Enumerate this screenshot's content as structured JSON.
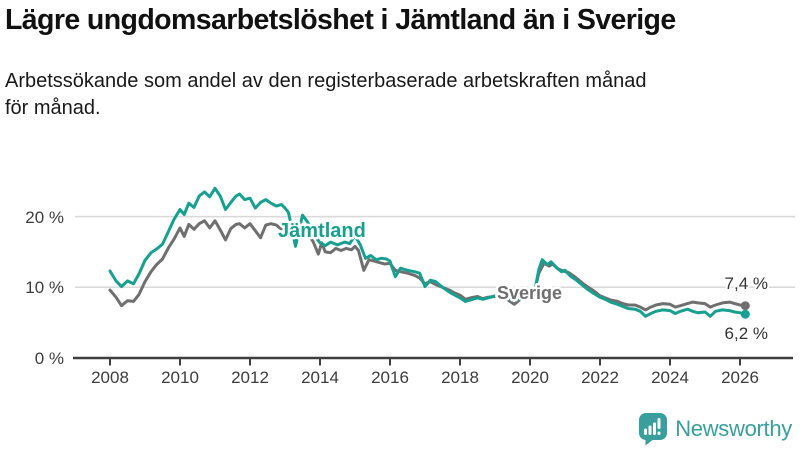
{
  "title": "Lägre ungdomsarbetslöshet i Jämtland än i Sverige",
  "subtitle_line1": "Arbetssökande som andel av den registerbaserade arbetskraften månad",
  "subtitle_line2": "för månad.",
  "branding": {
    "logo_text": "Newsworthy",
    "logo_icon": "bar-chart-speech-bubble-icon",
    "logo_color": "#3a9f9c"
  },
  "chart_data": {
    "type": "line",
    "x_range": [
      2007.5,
      2026.6
    ],
    "ylim": [
      0,
      27
    ],
    "grid": "horizontal",
    "x_tick_years": [
      "2008",
      "2010",
      "2012",
      "2014",
      "2016",
      "2018",
      "2020",
      "2022",
      "2024",
      "2026"
    ],
    "y_ticks": [
      {
        "value": 0,
        "label": "0 %"
      },
      {
        "value": 10,
        "label": "10 %"
      },
      {
        "value": 20,
        "label": "20 %"
      }
    ],
    "colors": {
      "jamtland": "#17a08f",
      "sverige": "#6f6f6f",
      "grid": "#d9d9d9",
      "axis": "#3f3f3f"
    },
    "series": [
      {
        "name": "Jämtland",
        "color": "#17a08f",
        "end_label": "6,2 %",
        "end_value": 6.2,
        "points": [
          [
            2008.0,
            12.3
          ],
          [
            2008.17,
            10.9
          ],
          [
            2008.33,
            10.1
          ],
          [
            2008.5,
            10.9
          ],
          [
            2008.67,
            10.5
          ],
          [
            2008.83,
            11.9
          ],
          [
            2009.0,
            13.8
          ],
          [
            2009.17,
            14.9
          ],
          [
            2009.33,
            15.4
          ],
          [
            2009.5,
            16.1
          ],
          [
            2009.67,
            17.9
          ],
          [
            2009.83,
            19.6
          ],
          [
            2010.0,
            21.0
          ],
          [
            2010.12,
            20.3
          ],
          [
            2010.25,
            21.9
          ],
          [
            2010.4,
            21.3
          ],
          [
            2010.55,
            22.9
          ],
          [
            2010.7,
            23.5
          ],
          [
            2010.85,
            22.8
          ],
          [
            2011.0,
            24.0
          ],
          [
            2011.15,
            22.9
          ],
          [
            2011.3,
            21.0
          ],
          [
            2011.45,
            22.0
          ],
          [
            2011.6,
            22.9
          ],
          [
            2011.7,
            23.2
          ],
          [
            2011.85,
            22.4
          ],
          [
            2012.0,
            22.6
          ],
          [
            2012.15,
            21.2
          ],
          [
            2012.3,
            22.0
          ],
          [
            2012.45,
            22.4
          ],
          [
            2012.6,
            21.9
          ],
          [
            2012.75,
            21.5
          ],
          [
            2012.9,
            21.7
          ],
          [
            2013.0,
            21.2
          ],
          [
            2013.1,
            20.6
          ],
          [
            2013.3,
            15.8
          ],
          [
            2013.5,
            20.2
          ],
          [
            2013.65,
            19.2
          ],
          [
            2013.8,
            17.6
          ],
          [
            2014.0,
            16.3
          ],
          [
            2014.15,
            15.9
          ],
          [
            2014.3,
            16.4
          ],
          [
            2014.5,
            16.0
          ],
          [
            2014.7,
            16.4
          ],
          [
            2014.85,
            16.2
          ],
          [
            2015.0,
            17.3
          ],
          [
            2015.15,
            16.0
          ],
          [
            2015.3,
            14.1
          ],
          [
            2015.45,
            14.5
          ],
          [
            2015.6,
            13.9
          ],
          [
            2015.75,
            14.1
          ],
          [
            2015.9,
            14.0
          ],
          [
            2016.0,
            13.7
          ],
          [
            2016.15,
            11.5
          ],
          [
            2016.3,
            12.7
          ],
          [
            2016.5,
            12.4
          ],
          [
            2016.7,
            12.2
          ],
          [
            2016.85,
            12.0
          ],
          [
            2017.0,
            10.1
          ],
          [
            2017.15,
            11.0
          ],
          [
            2017.3,
            10.8
          ],
          [
            2017.5,
            10.0
          ],
          [
            2017.7,
            9.3
          ],
          [
            2017.85,
            8.9
          ],
          [
            2018.0,
            8.5
          ],
          [
            2018.15,
            8.0
          ],
          [
            2018.3,
            8.2
          ],
          [
            2018.5,
            8.5
          ],
          [
            2018.65,
            8.3
          ],
          [
            2018.8,
            8.5
          ],
          [
            2019.0,
            8.8
          ],
          [
            2019.2,
            9.0
          ],
          [
            2019.4,
            8.4
          ],
          [
            2019.6,
            8.2
          ],
          [
            2019.8,
            8.6
          ],
          [
            2020.0,
            8.4
          ],
          [
            2020.1,
            8.6
          ],
          [
            2020.25,
            12.5
          ],
          [
            2020.35,
            13.9
          ],
          [
            2020.5,
            13.2
          ],
          [
            2020.6,
            13.6
          ],
          [
            2020.75,
            12.8
          ],
          [
            2020.9,
            12.2
          ],
          [
            2021.0,
            12.4
          ],
          [
            2021.15,
            11.6
          ],
          [
            2021.3,
            11.1
          ],
          [
            2021.5,
            10.3
          ],
          [
            2021.65,
            9.7
          ],
          [
            2021.8,
            9.2
          ],
          [
            2022.0,
            8.6
          ],
          [
            2022.15,
            8.3
          ],
          [
            2022.3,
            7.9
          ],
          [
            2022.5,
            7.6
          ],
          [
            2022.65,
            7.3
          ],
          [
            2022.8,
            7.0
          ],
          [
            2023.0,
            6.9
          ],
          [
            2023.15,
            6.6
          ],
          [
            2023.3,
            5.9
          ],
          [
            2023.45,
            6.3
          ],
          [
            2023.6,
            6.6
          ],
          [
            2023.8,
            6.8
          ],
          [
            2024.0,
            6.7
          ],
          [
            2024.15,
            6.3
          ],
          [
            2024.3,
            6.6
          ],
          [
            2024.5,
            6.9
          ],
          [
            2024.65,
            6.6
          ],
          [
            2024.8,
            6.4
          ],
          [
            2025.0,
            6.5
          ],
          [
            2025.15,
            5.9
          ],
          [
            2025.3,
            6.6
          ],
          [
            2025.5,
            6.8
          ],
          [
            2025.7,
            6.7
          ],
          [
            2025.85,
            6.5
          ],
          [
            2026.0,
            6.4
          ],
          [
            2026.15,
            6.2
          ]
        ]
      },
      {
        "name": "Sverige",
        "color": "#6f6f6f",
        "end_label": "7,4 %",
        "end_value": 7.4,
        "points": [
          [
            2008.0,
            9.6
          ],
          [
            2008.17,
            8.6
          ],
          [
            2008.33,
            7.4
          ],
          [
            2008.5,
            8.1
          ],
          [
            2008.67,
            8.0
          ],
          [
            2008.83,
            9.0
          ],
          [
            2009.0,
            10.8
          ],
          [
            2009.17,
            12.2
          ],
          [
            2009.33,
            13.2
          ],
          [
            2009.5,
            14.0
          ],
          [
            2009.67,
            15.6
          ],
          [
            2009.83,
            16.8
          ],
          [
            2010.0,
            18.4
          ],
          [
            2010.12,
            17.2
          ],
          [
            2010.25,
            18.9
          ],
          [
            2010.4,
            18.2
          ],
          [
            2010.55,
            19.0
          ],
          [
            2010.7,
            19.4
          ],
          [
            2010.85,
            18.4
          ],
          [
            2011.0,
            19.4
          ],
          [
            2011.15,
            18.1
          ],
          [
            2011.3,
            16.7
          ],
          [
            2011.45,
            18.3
          ],
          [
            2011.6,
            18.9
          ],
          [
            2011.7,
            19.0
          ],
          [
            2011.85,
            18.4
          ],
          [
            2012.0,
            19.0
          ],
          [
            2012.15,
            18.0
          ],
          [
            2012.3,
            17.0
          ],
          [
            2012.45,
            18.8
          ],
          [
            2012.6,
            19.0
          ],
          [
            2012.75,
            18.8
          ],
          [
            2012.9,
            18.2
          ],
          [
            2013.0,
            18.9
          ],
          [
            2013.15,
            18.0
          ],
          [
            2013.3,
            16.5
          ],
          [
            2013.5,
            18.2
          ],
          [
            2013.65,
            17.5
          ],
          [
            2013.8,
            16.5
          ],
          [
            2013.95,
            14.7
          ],
          [
            2014.05,
            16.3
          ],
          [
            2014.15,
            15.0
          ],
          [
            2014.3,
            14.9
          ],
          [
            2014.45,
            15.5
          ],
          [
            2014.6,
            15.2
          ],
          [
            2014.75,
            15.5
          ],
          [
            2014.9,
            15.3
          ],
          [
            2015.0,
            15.8
          ],
          [
            2015.1,
            15.2
          ],
          [
            2015.25,
            12.4
          ],
          [
            2015.4,
            13.9
          ],
          [
            2015.55,
            13.7
          ],
          [
            2015.7,
            13.5
          ],
          [
            2015.85,
            13.3
          ],
          [
            2016.0,
            13.4
          ],
          [
            2016.15,
            12.4
          ],
          [
            2016.3,
            12.2
          ],
          [
            2016.5,
            12.0
          ],
          [
            2016.7,
            11.7
          ],
          [
            2016.85,
            11.3
          ],
          [
            2017.0,
            10.5
          ],
          [
            2017.15,
            10.8
          ],
          [
            2017.3,
            10.4
          ],
          [
            2017.5,
            10.0
          ],
          [
            2017.7,
            9.6
          ],
          [
            2017.85,
            9.2
          ],
          [
            2018.0,
            8.9
          ],
          [
            2018.15,
            8.3
          ],
          [
            2018.3,
            8.5
          ],
          [
            2018.5,
            8.7
          ],
          [
            2018.65,
            8.4
          ],
          [
            2018.8,
            8.6
          ],
          [
            2019.0,
            8.7
          ],
          [
            2019.2,
            8.8
          ],
          [
            2019.4,
            8.1
          ],
          [
            2019.55,
            7.6
          ],
          [
            2019.7,
            8.2
          ],
          [
            2019.85,
            8.5
          ],
          [
            2020.0,
            8.4
          ],
          [
            2020.1,
            8.7
          ],
          [
            2020.25,
            12.0
          ],
          [
            2020.4,
            13.4
          ],
          [
            2020.55,
            13.0
          ],
          [
            2020.65,
            13.3
          ],
          [
            2020.8,
            12.6
          ],
          [
            2020.95,
            12.3
          ],
          [
            2021.1,
            12.1
          ],
          [
            2021.25,
            11.6
          ],
          [
            2021.4,
            11.0
          ],
          [
            2021.55,
            10.4
          ],
          [
            2021.7,
            9.9
          ],
          [
            2021.85,
            9.4
          ],
          [
            2022.0,
            8.8
          ],
          [
            2022.15,
            8.5
          ],
          [
            2022.3,
            8.2
          ],
          [
            2022.5,
            8.0
          ],
          [
            2022.65,
            7.7
          ],
          [
            2022.8,
            7.5
          ],
          [
            2023.0,
            7.5
          ],
          [
            2023.15,
            7.2
          ],
          [
            2023.3,
            6.8
          ],
          [
            2023.45,
            7.2
          ],
          [
            2023.6,
            7.5
          ],
          [
            2023.8,
            7.7
          ],
          [
            2024.0,
            7.6
          ],
          [
            2024.15,
            7.2
          ],
          [
            2024.3,
            7.4
          ],
          [
            2024.5,
            7.7
          ],
          [
            2024.65,
            7.9
          ],
          [
            2024.8,
            7.8
          ],
          [
            2025.0,
            7.7
          ],
          [
            2025.15,
            7.2
          ],
          [
            2025.3,
            7.5
          ],
          [
            2025.5,
            7.8
          ],
          [
            2025.7,
            7.9
          ],
          [
            2025.85,
            7.7
          ],
          [
            2026.0,
            7.5
          ],
          [
            2026.15,
            7.4
          ]
        ]
      }
    ]
  }
}
